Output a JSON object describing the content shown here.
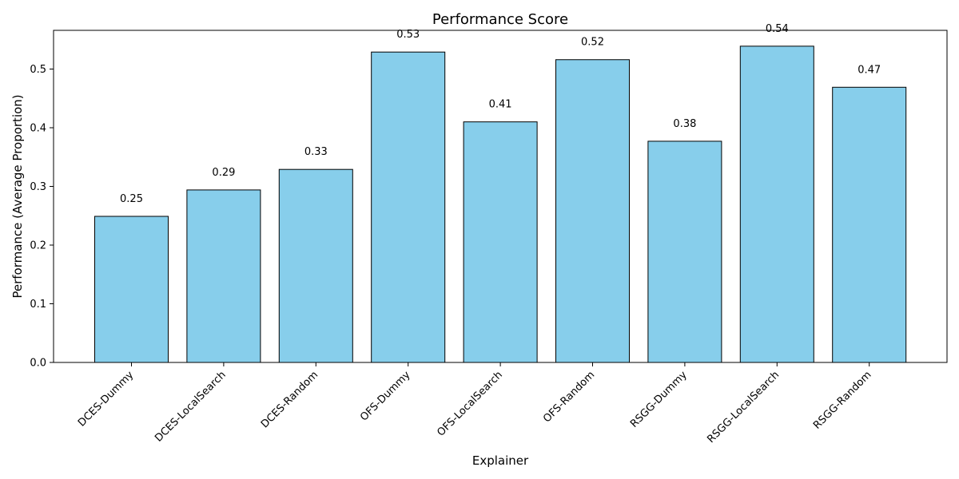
{
  "chart_data": {
    "type": "bar",
    "title": "Performance Score",
    "xlabel": "Explainer",
    "ylabel": "Performance (Average Proportion)",
    "categories": [
      "DCES-Dummy",
      "DCES-LocalSearch",
      "DCES-Random",
      "OFS-Dummy",
      "OFS-LocalSearch",
      "OFS-Random",
      "RSGG-Dummy",
      "RSGG-LocalSearch",
      "RSGG-Random"
    ],
    "values": [
      0.249,
      0.294,
      0.329,
      0.529,
      0.41,
      0.516,
      0.377,
      0.539,
      0.469
    ],
    "data_labels": [
      "0.25",
      "0.29",
      "0.33",
      "0.53",
      "0.41",
      "0.52",
      "0.38",
      "0.54",
      "0.47"
    ],
    "ylim": [
      0,
      0.566
    ],
    "yticks": [
      0.0,
      0.1,
      0.2,
      0.3,
      0.4,
      0.5
    ],
    "ytick_labels": [
      "0.0",
      "0.1",
      "0.2",
      "0.3",
      "0.4",
      "0.5"
    ],
    "bar_color": "#87CEEB",
    "bar_edge_color": "#000000",
    "grid": false,
    "legend": "none"
  }
}
